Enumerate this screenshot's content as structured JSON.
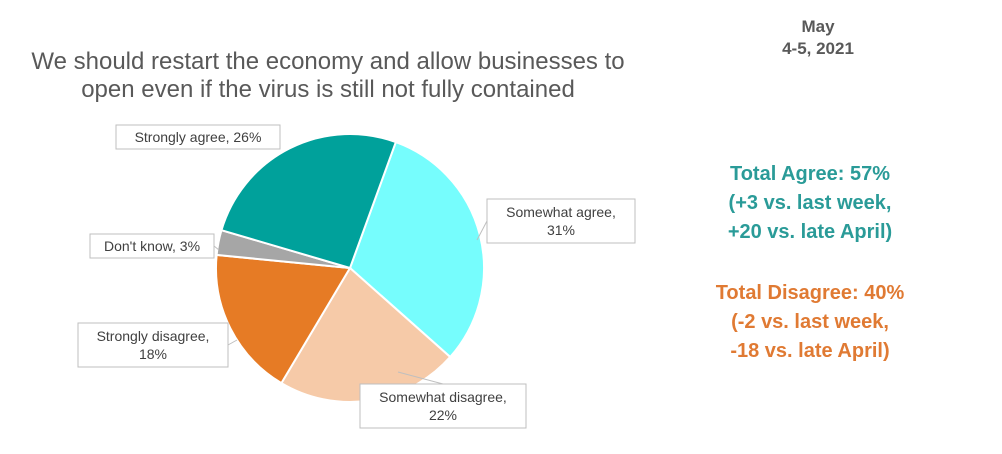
{
  "header": {
    "title": "We should restart the economy and allow businesses to\nopen even if the virus is still not fully contained",
    "date": "May\n4-5, 2021"
  },
  "summary": {
    "agree_line1": "Total Agree: 57%",
    "agree_line2": "(+3 vs. last week,",
    "agree_line3": "+20 vs. late April)",
    "disagree_line1": "Total Disagree: 40%",
    "disagree_line2": "(-2 vs. last week,",
    "disagree_line3": "-18 vs. late April)",
    "agree_color": "#2a9b98",
    "disagree_color": "#e07a33"
  },
  "chart_data": {
    "type": "pie",
    "title": "We should restart the economy and allow businesses to open even if the virus is still not fully contained",
    "legend": "none",
    "slices": [
      {
        "label": "Somewhat agree",
        "value": 31,
        "display": "Somewhat agree,\n31%",
        "color": "#76fdfd"
      },
      {
        "label": "Somewhat disagree",
        "value": 22,
        "display": "Somewhat disagree,\n22%",
        "color": "#f6caa8"
      },
      {
        "label": "Strongly disagree",
        "value": 18,
        "display": "Strongly disagree,\n18%",
        "color": "#e67b25"
      },
      {
        "label": "Don't know",
        "value": 3,
        "display": "Don't know, 3%",
        "color": "#a6a6a6"
      },
      {
        "label": "Strongly agree",
        "value": 26,
        "display": "Strongly agree, 26%",
        "color": "#00a19b"
      }
    ]
  }
}
